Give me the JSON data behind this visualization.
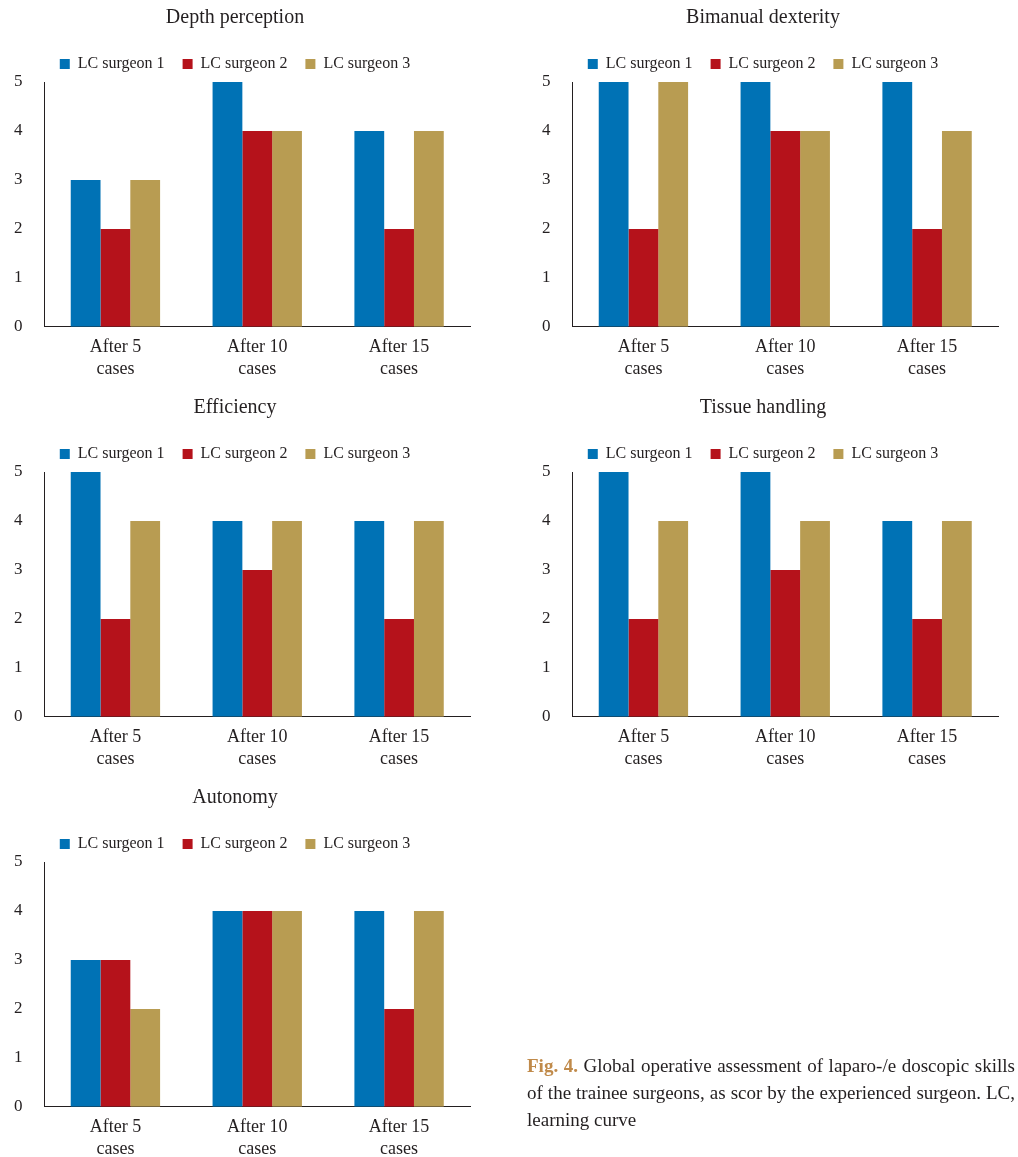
{
  "chart_data": [
    {
      "type": "bar",
      "title": "Depth perception",
      "categories": [
        "After 5 cases",
        "After 10 cases",
        "After 15 cases"
      ],
      "series": [
        {
          "name": "LC surgeon 1",
          "color": "#0072b5",
          "values": [
            3,
            5,
            4
          ]
        },
        {
          "name": "LC surgeon 2",
          "color": "#b5121b",
          "values": [
            2,
            4,
            2
          ]
        },
        {
          "name": "LC surgeon 3",
          "color": "#b89c52",
          "values": [
            3,
            4,
            4
          ]
        }
      ],
      "ylim": [
        0,
        5
      ],
      "yticks": [
        0,
        1,
        2,
        3,
        4,
        5
      ],
      "grid": false,
      "legend": "top"
    },
    {
      "type": "bar",
      "title": "Bimanual dexterity",
      "categories": [
        "After 5 cases",
        "After 10 cases",
        "After 15 cases"
      ],
      "series": [
        {
          "name": "LC surgeon 1",
          "color": "#0072b5",
          "values": [
            5,
            5,
            5
          ]
        },
        {
          "name": "LC surgeon 2",
          "color": "#b5121b",
          "values": [
            2,
            4,
            2
          ]
        },
        {
          "name": "LC surgeon 3",
          "color": "#b89c52",
          "values": [
            5,
            4,
            4
          ]
        }
      ],
      "ylim": [
        0,
        5
      ],
      "yticks": [
        0,
        1,
        2,
        3,
        4,
        5
      ],
      "grid": false,
      "legend": "top"
    },
    {
      "type": "bar",
      "title": "Efficiency",
      "categories": [
        "After 5 cases",
        "After 10 cases",
        "After 15 cases"
      ],
      "series": [
        {
          "name": "LC surgeon 1",
          "color": "#0072b5",
          "values": [
            5,
            4,
            4
          ]
        },
        {
          "name": "LC surgeon 2",
          "color": "#b5121b",
          "values": [
            2,
            3,
            2
          ]
        },
        {
          "name": "LC surgeon 3",
          "color": "#b89c52",
          "values": [
            4,
            4,
            4
          ]
        }
      ],
      "ylim": [
        0,
        5
      ],
      "yticks": [
        0,
        1,
        2,
        3,
        4,
        5
      ],
      "grid": false,
      "legend": "top"
    },
    {
      "type": "bar",
      "title": "Tissue handling",
      "categories": [
        "After 5 cases",
        "After 10 cases",
        "After 15 cases"
      ],
      "series": [
        {
          "name": "LC surgeon 1",
          "color": "#0072b5",
          "values": [
            5,
            5,
            4
          ]
        },
        {
          "name": "LC surgeon 2",
          "color": "#b5121b",
          "values": [
            2,
            3,
            2
          ]
        },
        {
          "name": "LC surgeon 3",
          "color": "#b89c52",
          "values": [
            4,
            4,
            4
          ]
        }
      ],
      "ylim": [
        0,
        5
      ],
      "yticks": [
        0,
        1,
        2,
        3,
        4,
        5
      ],
      "grid": false,
      "legend": "top"
    },
    {
      "type": "bar",
      "title": "Autonomy",
      "categories": [
        "After 5 cases",
        "After 10 cases",
        "After 15 cases"
      ],
      "series": [
        {
          "name": "LC surgeon 1",
          "color": "#0072b5",
          "values": [
            3,
            4,
            4
          ]
        },
        {
          "name": "LC surgeon 2",
          "color": "#b5121b",
          "values": [
            3,
            4,
            2
          ]
        },
        {
          "name": "LC surgeon 3",
          "color": "#b89c52",
          "values": [
            2,
            4,
            4
          ]
        }
      ],
      "ylim": [
        0,
        5
      ],
      "yticks": [
        0,
        1,
        2,
        3,
        4,
        5
      ],
      "grid": false,
      "legend": "top",
      "annotations": [
        "Fig. 4. Global operative assessment of laparo-/e doscopic skills of the trainee surgeons, as scor by the experienced surgeon. LC, learning curve"
      ]
    }
  ]
}
